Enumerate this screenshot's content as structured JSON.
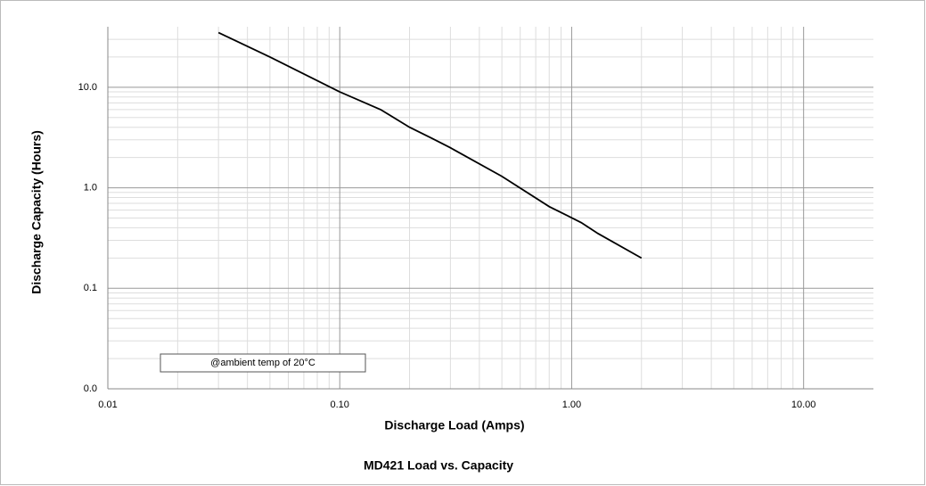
{
  "chart_data": {
    "type": "line",
    "title": "MD421 Load vs. Capacity",
    "x_label": "Discharge Load (Amps)",
    "y_label": "Discharge Capacity (Hours)",
    "annotation": "@ambient temp of 20°C",
    "x": [
      0.03,
      0.05,
      0.1,
      0.15,
      0.2,
      0.25,
      0.3,
      0.5,
      0.8,
      1.1,
      1.3,
      2.0
    ],
    "series": [
      {
        "name": "MD421",
        "color": "#000000",
        "values": [
          35,
          20,
          9,
          6,
          4.0,
          3.1,
          2.5,
          1.3,
          0.65,
          0.45,
          0.35,
          0.2
        ]
      }
    ],
    "xlim": [
      0.01,
      20
    ],
    "ylim": [
      0.01,
      40
    ],
    "xticks": [
      {
        "value": 0.01,
        "label": "0.01"
      },
      {
        "value": 0.1,
        "label": "0.10"
      },
      {
        "value": 1,
        "label": "1.00"
      },
      {
        "value": 10,
        "label": "10.00"
      }
    ],
    "yticks": [
      {
        "value": 0.01,
        "label": "0.0"
      },
      {
        "value": 0.1,
        "label": "0.1"
      },
      {
        "value": 1,
        "label": "1.0"
      },
      {
        "value": 10,
        "label": "10.0"
      }
    ],
    "log_x": true,
    "log_y": true,
    "grid": true,
    "minor_grid": true
  }
}
